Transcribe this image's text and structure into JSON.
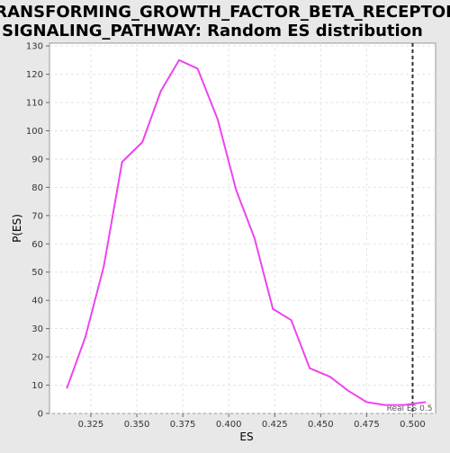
{
  "chart_data": {
    "type": "line",
    "title": "TRANSFORMING_GROWTH_FACTOR_BETA_RECEPTOR_\nSIGNALING_PATHWAY: Random ES distribution",
    "xlabel": "ES",
    "ylabel": "P(ES)",
    "xlim": [
      0.3025,
      0.5125
    ],
    "ylim": [
      0,
      131
    ],
    "x_ticks": [
      0.325,
      0.35,
      0.375,
      0.4,
      0.425,
      0.45,
      0.475,
      0.5
    ],
    "x_tick_labels": [
      "0.325",
      "0.350",
      "0.375",
      "0.400",
      "0.425",
      "0.450",
      "0.475",
      "0.500"
    ],
    "y_ticks": [
      0,
      10,
      20,
      30,
      40,
      50,
      60,
      70,
      80,
      90,
      100,
      110,
      120,
      130
    ],
    "grid": true,
    "line_color": "#ee44ee",
    "series": [
      {
        "x": [
          0.312,
          0.322,
          0.332,
          0.342,
          0.353,
          0.363,
          0.373,
          0.383,
          0.394,
          0.404,
          0.414,
          0.424,
          0.434,
          0.444,
          0.455,
          0.465,
          0.475,
          0.485,
          0.495,
          0.507
        ],
        "values": [
          9,
          27,
          52,
          89,
          96,
          114,
          125,
          122,
          104,
          79,
          62,
          37,
          33,
          16,
          13,
          8,
          4,
          3,
          3,
          4
        ]
      }
    ],
    "reference_line": {
      "x": 0.5,
      "label": "Real ES 0.5",
      "color": "#333333"
    }
  }
}
